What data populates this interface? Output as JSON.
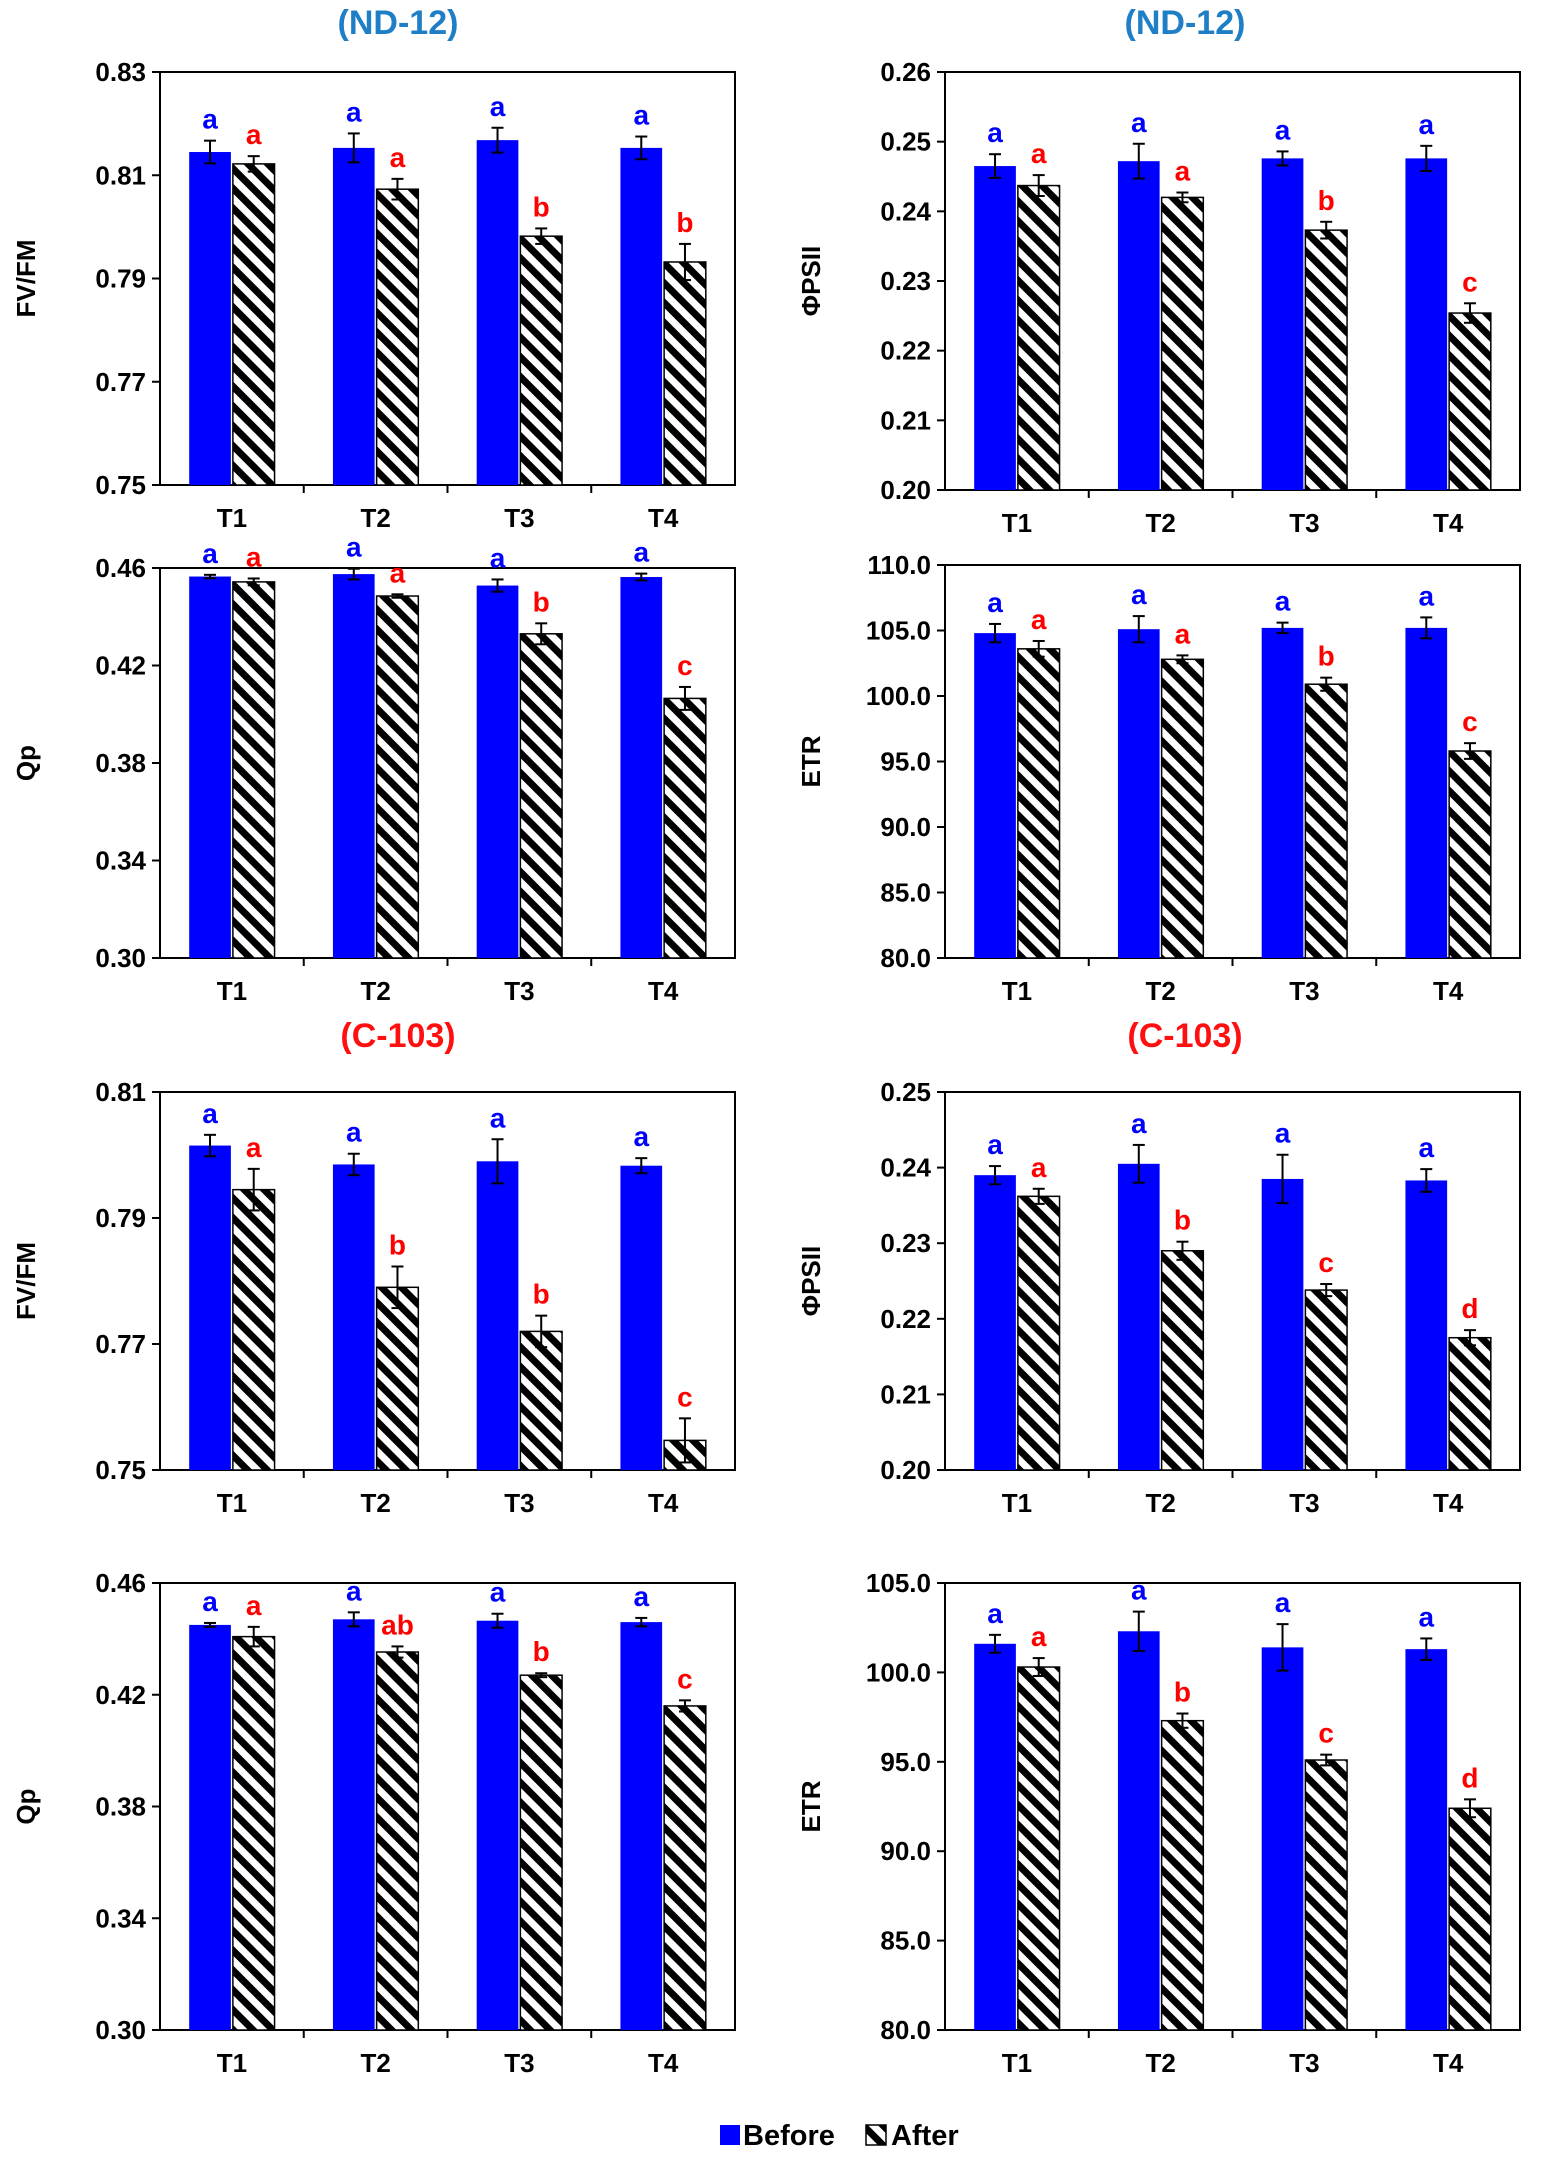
{
  "titles": {
    "top": "(ND-12)",
    "bottom": "(C-103)"
  },
  "colors": {
    "before": "#0000ff",
    "after_stripe": "#000000",
    "title_top": "#1f7fc6",
    "title_bottom": "#ff1010",
    "letter_before": "#0000ff",
    "letter_after": "#ff0000"
  },
  "legend": {
    "before": "Before",
    "after": "After"
  },
  "chart_data": [
    {
      "id": "nd-fvfm",
      "type": "bar",
      "group": "ND-12",
      "title": "",
      "xlabel": "",
      "ylabel": "FV/FM",
      "categories": [
        "T1",
        "T2",
        "T3",
        "T4"
      ],
      "ylim": [
        0.75,
        0.83
      ],
      "yticks": [
        "0.75",
        "0.77",
        "0.79",
        "0.81",
        "0.83"
      ],
      "series": [
        {
          "name": "Before",
          "values": [
            0.8145,
            0.8153,
            0.8168,
            0.8153
          ],
          "errors": [
            0.0022,
            0.0028,
            0.0024,
            0.0022
          ],
          "letters": [
            "a",
            "a",
            "a",
            "a"
          ]
        },
        {
          "name": "After",
          "values": [
            0.8122,
            0.8073,
            0.7982,
            0.7932
          ],
          "errors": [
            0.0015,
            0.002,
            0.0015,
            0.0035
          ],
          "letters": [
            "a",
            "a",
            "b",
            "b"
          ]
        }
      ]
    },
    {
      "id": "nd-phipsii",
      "type": "bar",
      "group": "ND-12",
      "title": "",
      "xlabel": "",
      "ylabel": "ΦPSII",
      "categories": [
        "T1",
        "T2",
        "T3",
        "T4"
      ],
      "ylim": [
        0.2,
        0.26
      ],
      "yticks": [
        "0.20",
        "0.21",
        "0.22",
        "0.23",
        "0.24",
        "0.25",
        "0.26"
      ],
      "series": [
        {
          "name": "Before",
          "values": [
            0.2465,
            0.2472,
            0.2476,
            0.2476
          ],
          "errors": [
            0.0017,
            0.0025,
            0.001,
            0.0018
          ],
          "letters": [
            "a",
            "a",
            "a",
            "a"
          ]
        },
        {
          "name": "After",
          "values": [
            0.2437,
            0.242,
            0.2373,
            0.2254
          ],
          "errors": [
            0.0015,
            0.0007,
            0.0012,
            0.0014
          ],
          "letters": [
            "a",
            "a",
            "b",
            "c"
          ]
        }
      ]
    },
    {
      "id": "nd-qp",
      "type": "bar",
      "group": "ND-12",
      "title": "",
      "xlabel": "",
      "ylabel": "Qp",
      "categories": [
        "T1",
        "T2",
        "T3",
        "T4"
      ],
      "ylim": [
        0.3,
        0.46
      ],
      "yticks": [
        "0.30",
        "0.34",
        "0.38",
        "0.42",
        "0.46"
      ],
      "series": [
        {
          "name": "Before",
          "values": [
            0.4565,
            0.4575,
            0.4528,
            0.4563
          ],
          "errors": [
            0.0007,
            0.0022,
            0.0025,
            0.0014
          ],
          "letters": [
            "a",
            "a",
            "a",
            "a"
          ]
        },
        {
          "name": "After",
          "values": [
            0.4543,
            0.4485,
            0.433,
            0.4065
          ],
          "errors": [
            0.0014,
            0.0007,
            0.0043,
            0.0047
          ],
          "letters": [
            "a",
            "a",
            "b",
            "c"
          ]
        }
      ]
    },
    {
      "id": "nd-etr",
      "type": "bar",
      "group": "ND-12",
      "title": "",
      "xlabel": "",
      "ylabel": "ETR",
      "categories": [
        "T1",
        "T2",
        "T3",
        "T4"
      ],
      "ylim": [
        80.0,
        110.0
      ],
      "yticks": [
        "80.0",
        "85.0",
        "90.0",
        "95.0",
        "100.0",
        "105.0",
        "110.0"
      ],
      "series": [
        {
          "name": "Before",
          "values": [
            104.8,
            105.1,
            105.2,
            105.2
          ],
          "errors": [
            0.7,
            1.0,
            0.4,
            0.8
          ],
          "letters": [
            "a",
            "a",
            "a",
            "a"
          ]
        },
        {
          "name": "After",
          "values": [
            103.6,
            102.8,
            100.9,
            95.8
          ],
          "errors": [
            0.6,
            0.3,
            0.5,
            0.6
          ],
          "letters": [
            "a",
            "a",
            "b",
            "c"
          ]
        }
      ]
    },
    {
      "id": "c-fvfm",
      "type": "bar",
      "group": "C-103",
      "title": "",
      "xlabel": "",
      "ylabel": "FV/FM",
      "categories": [
        "T1",
        "T2",
        "T3",
        "T4"
      ],
      "ylim": [
        0.75,
        0.81
      ],
      "yticks": [
        "0.75",
        "0.77",
        "0.79",
        "0.81"
      ],
      "series": [
        {
          "name": "Before",
          "values": [
            0.8015,
            0.7985,
            0.799,
            0.7983
          ],
          "errors": [
            0.0017,
            0.0017,
            0.0035,
            0.0012
          ],
          "letters": [
            "a",
            "a",
            "a",
            "a"
          ]
        },
        {
          "name": "After",
          "values": [
            0.7945,
            0.779,
            0.772,
            0.7547
          ],
          "errors": [
            0.0033,
            0.0033,
            0.0025,
            0.0035
          ],
          "letters": [
            "a",
            "b",
            "b",
            "c"
          ]
        }
      ]
    },
    {
      "id": "c-phipsii",
      "type": "bar",
      "group": "C-103",
      "title": "",
      "xlabel": "",
      "ylabel": "ΦPSII",
      "categories": [
        "T1",
        "T2",
        "T3",
        "T4"
      ],
      "ylim": [
        0.2,
        0.25
      ],
      "yticks": [
        "0.20",
        "0.21",
        "0.22",
        "0.23",
        "0.24",
        "0.25"
      ],
      "series": [
        {
          "name": "Before",
          "values": [
            0.239,
            0.2405,
            0.2385,
            0.2383
          ],
          "errors": [
            0.0012,
            0.0025,
            0.0032,
            0.0015
          ],
          "letters": [
            "a",
            "a",
            "a",
            "a"
          ]
        },
        {
          "name": "After",
          "values": [
            0.2362,
            0.229,
            0.2238,
            0.2175
          ],
          "errors": [
            0.001,
            0.0012,
            0.0008,
            0.001
          ],
          "letters": [
            "a",
            "b",
            "c",
            "d"
          ]
        }
      ]
    },
    {
      "id": "c-qp",
      "type": "bar",
      "group": "C-103",
      "title": "",
      "xlabel": "",
      "ylabel": "Qp",
      "categories": [
        "T1",
        "T2",
        "T3",
        "T4"
      ],
      "ylim": [
        0.3,
        0.46
      ],
      "yticks": [
        "0.30",
        "0.34",
        "0.38",
        "0.42",
        "0.46"
      ],
      "series": [
        {
          "name": "Before",
          "values": [
            0.445,
            0.447,
            0.4465,
            0.446
          ],
          "errors": [
            0.0007,
            0.0025,
            0.0025,
            0.0015
          ],
          "letters": [
            "a",
            "a",
            "a",
            "a"
          ]
        },
        {
          "name": "After",
          "values": [
            0.4408,
            0.4353,
            0.427,
            0.416
          ],
          "errors": [
            0.0035,
            0.002,
            0.0007,
            0.002
          ],
          "letters": [
            "a",
            "ab",
            "b",
            "c"
          ]
        }
      ]
    },
    {
      "id": "c-etr",
      "type": "bar",
      "group": "C-103",
      "title": "",
      "xlabel": "",
      "ylabel": "ETR",
      "categories": [
        "T1",
        "T2",
        "T3",
        "T4"
      ],
      "ylim": [
        80.0,
        105.0
      ],
      "yticks": [
        "80.0",
        "85.0",
        "90.0",
        "95.0",
        "100.0",
        "105.0"
      ],
      "series": [
        {
          "name": "Before",
          "values": [
            101.6,
            102.3,
            101.4,
            101.3
          ],
          "errors": [
            0.5,
            1.1,
            1.3,
            0.6
          ],
          "letters": [
            "a",
            "a",
            "a",
            "a"
          ]
        },
        {
          "name": "After",
          "values": [
            100.3,
            97.3,
            95.1,
            92.4
          ],
          "errors": [
            0.5,
            0.4,
            0.3,
            0.5
          ],
          "letters": [
            "a",
            "b",
            "c",
            "d"
          ]
        }
      ]
    }
  ]
}
